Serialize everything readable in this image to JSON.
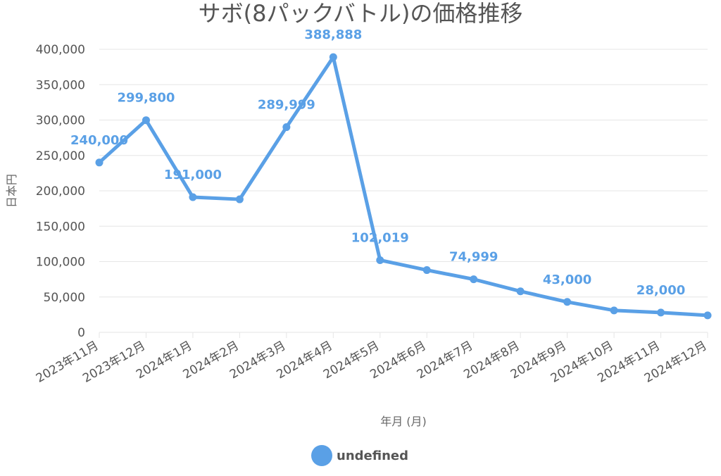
{
  "chart_data": {
    "type": "line",
    "title": "サボ(8パックバトル)の価格推移",
    "xlabel": "年月 (月)",
    "ylabel": "日本円",
    "categories": [
      "2023年11月",
      "2023年12月",
      "2024年1月",
      "2024年2月",
      "2024年3月",
      "2024年4月",
      "2024年5月",
      "2024年6月",
      "2024年7月",
      "2024年8月",
      "2024年9月",
      "2024年10月",
      "2024年11月",
      "2024年12月"
    ],
    "series": [
      {
        "name": "undefined",
        "color": "#5aa0e6",
        "values": [
          240000,
          299800,
          191000,
          188000,
          289999,
          388888,
          102019,
          88000,
          74999,
          58000,
          43000,
          31000,
          28000,
          24000
        ]
      }
    ],
    "data_labels": [
      {
        "index": 0,
        "text": "240,000"
      },
      {
        "index": 1,
        "text": "299,800"
      },
      {
        "index": 2,
        "text": "191,000"
      },
      {
        "index": 4,
        "text": "289,999"
      },
      {
        "index": 5,
        "text": "388,888"
      },
      {
        "index": 6,
        "text": "102,019"
      },
      {
        "index": 8,
        "text": "74,999"
      },
      {
        "index": 10,
        "text": "43,000"
      },
      {
        "index": 12,
        "text": "28,000"
      }
    ],
    "ylim": [
      0,
      400000
    ],
    "yticks": [
      {
        "value": 0,
        "label": "0"
      },
      {
        "value": 50000,
        "label": "50,000"
      },
      {
        "value": 100000,
        "label": "100,000"
      },
      {
        "value": 150000,
        "label": "150,000"
      },
      {
        "value": 200000,
        "label": "200,000"
      },
      {
        "value": 250000,
        "label": "250,000"
      },
      {
        "value": 300000,
        "label": "300,000"
      },
      {
        "value": 350000,
        "label": "350,000"
      },
      {
        "value": 400000,
        "label": "400,000"
      }
    ],
    "grid": true,
    "legend": {
      "position": "bottom",
      "label": "undefined"
    }
  }
}
